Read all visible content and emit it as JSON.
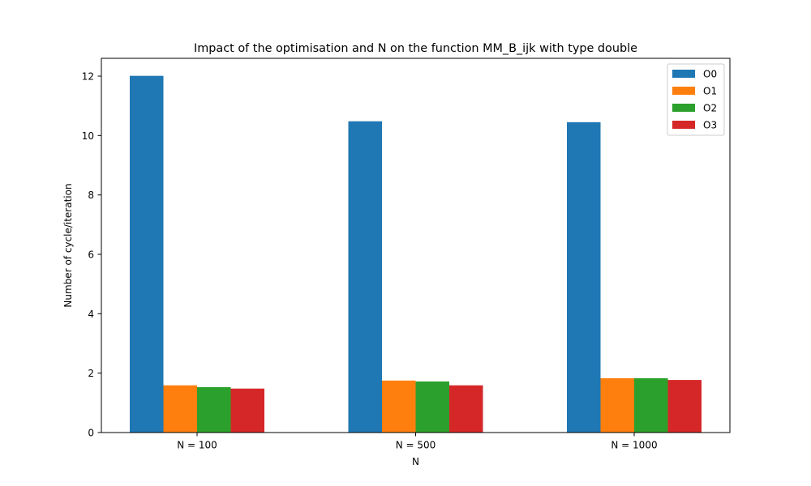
{
  "chart_data": {
    "type": "bar",
    "title": "Impact of the optimisation and N on the function MM_B_ijk with type double",
    "xlabel": "N",
    "ylabel": "Number of cycle/iteration",
    "categories": [
      "N = 100",
      "N = 500",
      "N = 1000"
    ],
    "series": [
      {
        "name": "O0",
        "color": "#1f77b4",
        "values": [
          12.01,
          10.48,
          10.45
        ]
      },
      {
        "name": "O1",
        "color": "#ff7f0e",
        "values": [
          1.59,
          1.75,
          1.83
        ]
      },
      {
        "name": "O2",
        "color": "#2ca02c",
        "values": [
          1.53,
          1.72,
          1.83
        ]
      },
      {
        "name": "O3",
        "color": "#d62728",
        "values": [
          1.48,
          1.59,
          1.77
        ]
      }
    ],
    "ylim": [
      0,
      12.6
    ],
    "yticks": [
      "0",
      "2",
      "4",
      "6",
      "8",
      "10",
      "12"
    ],
    "grid": false,
    "legend_position": "top-right"
  }
}
